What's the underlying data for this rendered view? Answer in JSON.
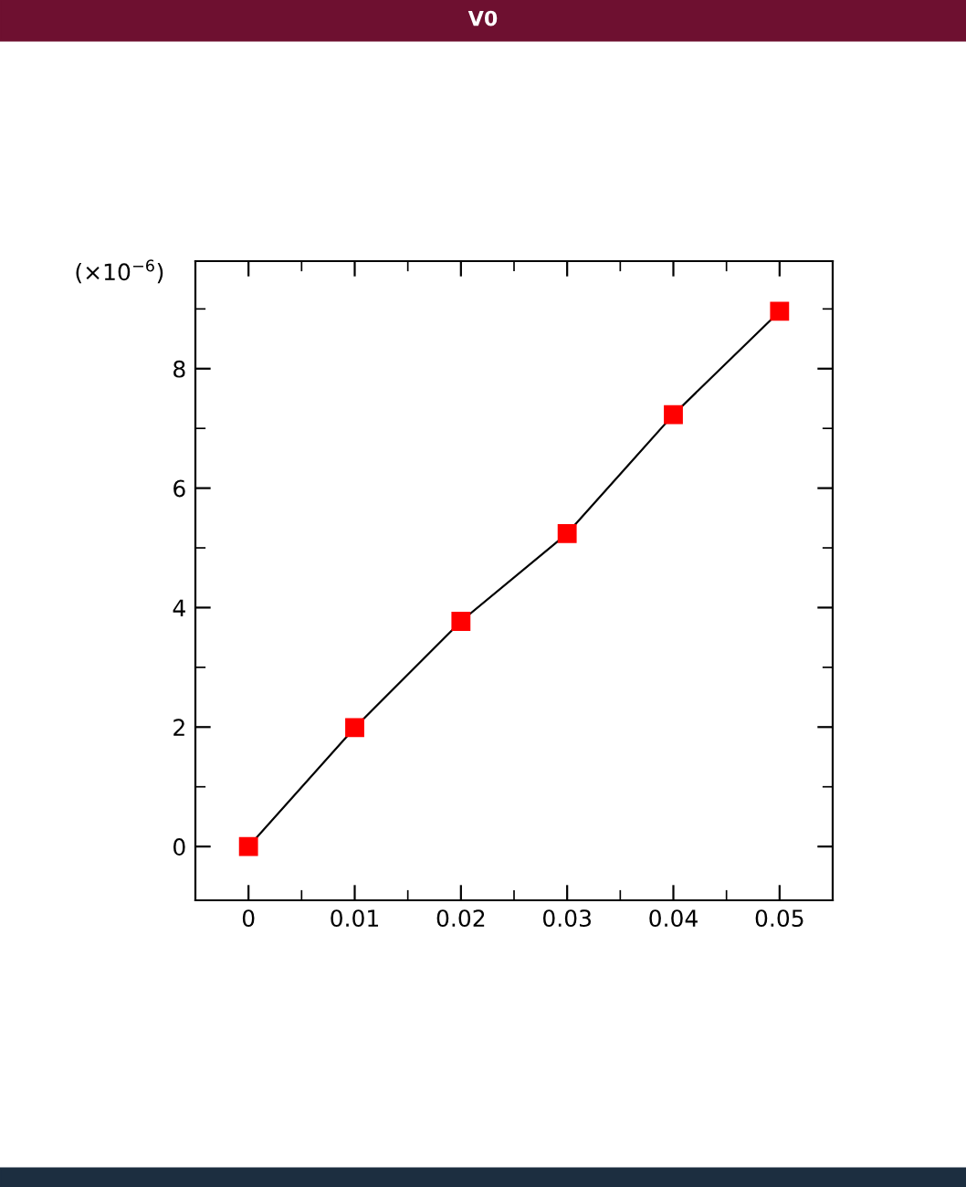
{
  "chart_data": {
    "type": "line",
    "title": "V0",
    "x": [
      0,
      0.01,
      0.02,
      0.03,
      0.04,
      0.05
    ],
    "series": [
      {
        "color": "#ff0000",
        "values": [
          0,
          1.99,
          3.77,
          5.24,
          7.23,
          8.96
        ]
      }
    ],
    "xlim": [
      -0.005,
      0.055
    ],
    "xticks": [
      0,
      0.01,
      0.02,
      0.03,
      0.04,
      0.05
    ],
    "ylim": [
      -0.9,
      9.8
    ],
    "yticks": [
      0,
      2,
      4,
      6,
      8
    ],
    "annotations": [
      "(×10$^{−6}$)"
    ],
    "marker": "square",
    "line_style": "solid",
    "grid": false,
    "legend": false
  }
}
